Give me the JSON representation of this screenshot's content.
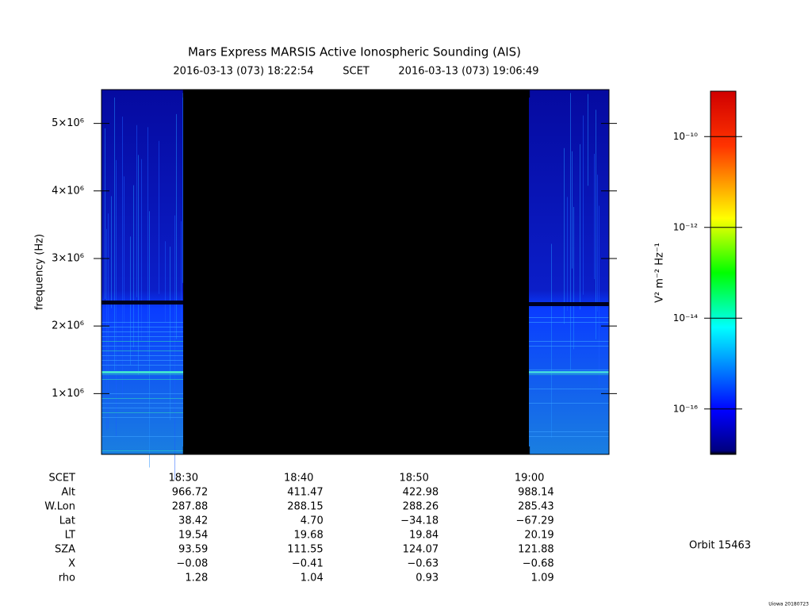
{
  "chart_data": {
    "type": "spectrogram",
    "title": "Mars Express MARSIS Active Ionospheric Sounding (AIS)",
    "start_time": "2016-03-13 (073) 18:22:54",
    "time_label": "SCET",
    "end_time": "2016-03-13 (073) 19:06:49",
    "y_label": "frequency (Hz)",
    "ylim": [
      100000,
      5500000
    ],
    "yticks": [
      {
        "value": 1000000,
        "label": "1×10⁶"
      },
      {
        "value": 2000000,
        "label": "2×10⁶"
      },
      {
        "value": 3000000,
        "label": "3×10⁶"
      },
      {
        "value": 4000000,
        "label": "4×10⁶"
      },
      {
        "value": 5000000,
        "label": "5×10⁶"
      }
    ],
    "xlim": [
      22.9,
      66.9
    ],
    "xticks": [
      {
        "value": 30,
        "label": "18:30"
      },
      {
        "value": 40,
        "label": "18:40"
      },
      {
        "value": 50,
        "label": "18:50"
      },
      {
        "value": 60,
        "label": "19:00"
      }
    ],
    "ephemeris": [
      {
        "label": "Alt",
        "values": [
          "966.72",
          "411.47",
          "422.98",
          "988.14"
        ]
      },
      {
        "label": "W.Lon",
        "values": [
          "287.88",
          "288.15",
          "288.26",
          "285.43"
        ]
      },
      {
        "label": "Lat",
        "values": [
          "38.42",
          "4.70",
          "−34.18",
          "−67.29"
        ]
      },
      {
        "label": "LT",
        "values": [
          "19.54",
          "19.68",
          "19.84",
          "20.19"
        ]
      },
      {
        "label": "SZA",
        "values": [
          "93.59",
          "111.55",
          "124.07",
          "121.88"
        ]
      },
      {
        "label": "X",
        "values": [
          "−0.08",
          "−0.41",
          "−0.63",
          "−0.68"
        ]
      },
      {
        "label": "rho",
        "values": [
          "1.28",
          "1.04",
          "0.93",
          "1.09"
        ]
      }
    ],
    "colorbar": {
      "label": "V² m⁻² Hz⁻¹",
      "log": true,
      "zlim": [
        1e-17,
        1e-09
      ],
      "zticks": [
        {
          "value": 1e-16,
          "label": "10⁻¹⁶"
        },
        {
          "value": 1e-14,
          "label": "10⁻¹⁴"
        },
        {
          "value": 1e-12,
          "label": "10⁻¹²"
        },
        {
          "value": 1e-10,
          "label": "10⁻¹⁰"
        }
      ]
    },
    "orbit": "Orbit 15463",
    "credit": "Uiowa 20180723"
  }
}
